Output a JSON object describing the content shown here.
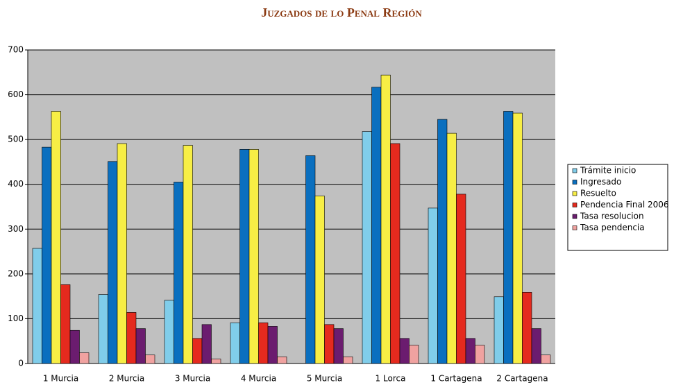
{
  "chart_data": {
    "type": "bar",
    "title": "Juzgados de lo Penal Región",
    "categories": [
      "1 Murcia",
      "2 Murcia",
      "3 Murcia",
      "4 Murcia",
      "5 Murcia",
      "1 Lorca",
      "1 Cartagena",
      "2 Cartagena"
    ],
    "series": [
      {
        "name": "Trámite inicio",
        "color": "#80cdea",
        "values": [
          257,
          154,
          141,
          91,
          0,
          518,
          347,
          149
        ]
      },
      {
        "name": "Ingresado",
        "color": "#0a6fbf",
        "values": [
          483,
          451,
          405,
          478,
          464,
          617,
          545,
          563
        ]
      },
      {
        "name": "Resuelto",
        "color": "#f7ee45",
        "values": [
          563,
          491,
          487,
          478,
          374,
          644,
          514,
          559
        ]
      },
      {
        "name": "Pendencia Final 2006",
        "color": "#e52a1e",
        "values": [
          176,
          114,
          56,
          91,
          87,
          491,
          378,
          159
        ]
      },
      {
        "name": "Tasa resolucion",
        "color": "#6b1c6f",
        "values": [
          74,
          78,
          87,
          83,
          78,
          56,
          56,
          78
        ]
      },
      {
        "name": "Tasa pendencia",
        "color": "#f0a2a0",
        "values": [
          24,
          19,
          10,
          15,
          15,
          41,
          41,
          19
        ]
      }
    ],
    "ylim": [
      0,
      700
    ],
    "yticks": [
      0,
      100,
      200,
      300,
      400,
      500,
      600,
      700
    ],
    "grid": true,
    "legend": "right"
  }
}
